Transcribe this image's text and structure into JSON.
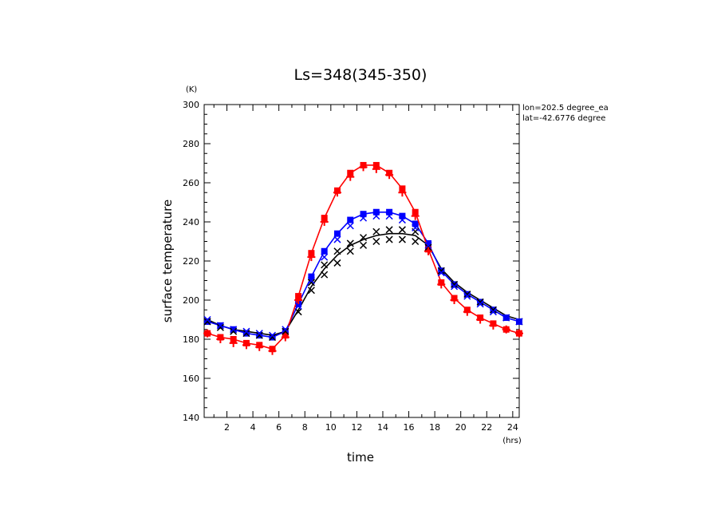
{
  "chart_data": {
    "type": "line",
    "title": "Ls=348(345-350)",
    "xlabel": "time",
    "ylabel": "surface temperature",
    "x_unit": "(hrs)",
    "y_unit": "(K)",
    "xlim": [
      0.25,
      24.5
    ],
    "ylim": [
      140,
      300
    ],
    "x_ticks": [
      2,
      4,
      6,
      8,
      10,
      12,
      14,
      16,
      18,
      20,
      22,
      24
    ],
    "x_tick_labels": [
      "2",
      "4",
      "6",
      "8",
      "10",
      "12",
      "14",
      "16",
      "18",
      "20",
      "22",
      "24"
    ],
    "y_ticks": [
      140,
      160,
      180,
      200,
      220,
      240,
      260,
      280,
      300
    ],
    "y_tick_labels": [
      "140",
      "160",
      "180",
      "200",
      "220",
      "240",
      "260",
      "280",
      "300"
    ],
    "annotations": [
      "lon=202.5 degree_ea",
      "lat=-42.6776 degree"
    ],
    "x": [
      0.5,
      1.5,
      2.5,
      3.5,
      4.5,
      5.5,
      6.5,
      7.5,
      8.5,
      9.5,
      10.5,
      11.5,
      12.5,
      13.5,
      14.5,
      15.5,
      16.5,
      17.5,
      18.5,
      19.5,
      20.5,
      21.5,
      22.5,
      23.5,
      24.5
    ],
    "series": [
      {
        "color": "#ff0000",
        "marker": "square",
        "values": [
          183,
          181,
          180,
          178,
          177,
          175,
          182,
          202,
          224,
          242,
          256,
          265,
          269,
          269,
          265,
          257,
          245,
          226,
          209,
          201,
          195,
          191,
          188,
          185,
          183
        ],
        "scatter_marker": "plus",
        "scatter": [
          [
            0.5,
            183
          ],
          [
            1.5,
            180
          ],
          [
            2.5,
            178
          ],
          [
            3.5,
            177
          ],
          [
            4.5,
            176
          ],
          [
            5.5,
            174
          ],
          [
            6.5,
            181
          ],
          [
            7.5,
            200
          ],
          [
            8.5,
            222
          ],
          [
            9.5,
            240
          ],
          [
            10.5,
            255
          ],
          [
            11.5,
            263
          ],
          [
            12.5,
            268
          ],
          [
            13.5,
            267
          ],
          [
            14.5,
            264
          ],
          [
            15.5,
            255
          ],
          [
            16.5,
            243
          ],
          [
            17.5,
            225
          ],
          [
            18.5,
            208
          ],
          [
            19.5,
            200
          ],
          [
            20.5,
            194
          ],
          [
            21.5,
            190
          ],
          [
            22.5,
            187
          ],
          [
            23.5,
            185
          ],
          [
            24.5,
            183
          ]
        ]
      },
      {
        "color": "#0000ff",
        "marker": "square",
        "values": [
          189,
          187,
          185,
          183,
          182,
          181,
          184,
          198,
          212,
          225,
          234,
          241,
          244,
          245,
          245,
          243,
          239,
          229,
          215,
          208,
          203,
          199,
          195,
          191,
          189
        ],
        "scatter_marker": "x",
        "scatter": [
          [
            0.5,
            190
          ],
          [
            1.5,
            187
          ],
          [
            2.5,
            185
          ],
          [
            3.5,
            184
          ],
          [
            4.5,
            183
          ],
          [
            5.5,
            182
          ],
          [
            6.5,
            185
          ],
          [
            7.5,
            197
          ],
          [
            8.5,
            210
          ],
          [
            9.5,
            222
          ],
          [
            10.5,
            231
          ],
          [
            11.5,
            238
          ],
          [
            12.5,
            242
          ],
          [
            13.5,
            243
          ],
          [
            14.5,
            243
          ],
          [
            15.5,
            241
          ],
          [
            16.5,
            237
          ],
          [
            17.5,
            228
          ],
          [
            18.5,
            214
          ],
          [
            19.5,
            207
          ],
          [
            20.5,
            202
          ],
          [
            21.5,
            198
          ],
          [
            22.5,
            194
          ],
          [
            23.5,
            191
          ],
          [
            24.5,
            189
          ]
        ]
      },
      {
        "color": "#000000",
        "marker": "none",
        "values": [
          190,
          187,
          185,
          184,
          183,
          182,
          184,
          195,
          207,
          216,
          223,
          228,
          231,
          233,
          234,
          234,
          233,
          228,
          216,
          209,
          204,
          200,
          196,
          192,
          190
        ],
        "scatter_marker": "x",
        "scatter": [
          [
            0.5,
            189
          ],
          [
            1.5,
            186
          ],
          [
            2.5,
            184
          ],
          [
            3.5,
            183
          ],
          [
            4.5,
            182
          ],
          [
            5.5,
            181
          ],
          [
            6.5,
            184
          ],
          [
            7.5,
            194
          ],
          [
            8.5,
            205
          ],
          [
            9.5,
            213
          ],
          [
            10.5,
            219
          ],
          [
            11.5,
            225
          ],
          [
            12.5,
            228
          ],
          [
            13.5,
            230
          ],
          [
            14.5,
            231
          ],
          [
            15.5,
            231
          ],
          [
            16.5,
            230
          ],
          [
            17.5,
            227
          ],
          [
            18.5,
            215
          ],
          [
            19.5,
            208
          ],
          [
            20.5,
            203
          ],
          [
            21.5,
            199
          ],
          [
            22.5,
            195
          ],
          [
            23.5,
            191
          ],
          [
            24.5,
            189
          ],
          [
            8.5,
            209
          ],
          [
            9.5,
            218
          ],
          [
            10.5,
            225
          ],
          [
            11.5,
            229
          ],
          [
            12.5,
            232
          ],
          [
            13.5,
            235
          ],
          [
            14.5,
            236
          ],
          [
            15.5,
            236
          ],
          [
            16.5,
            235
          ]
        ]
      }
    ]
  }
}
